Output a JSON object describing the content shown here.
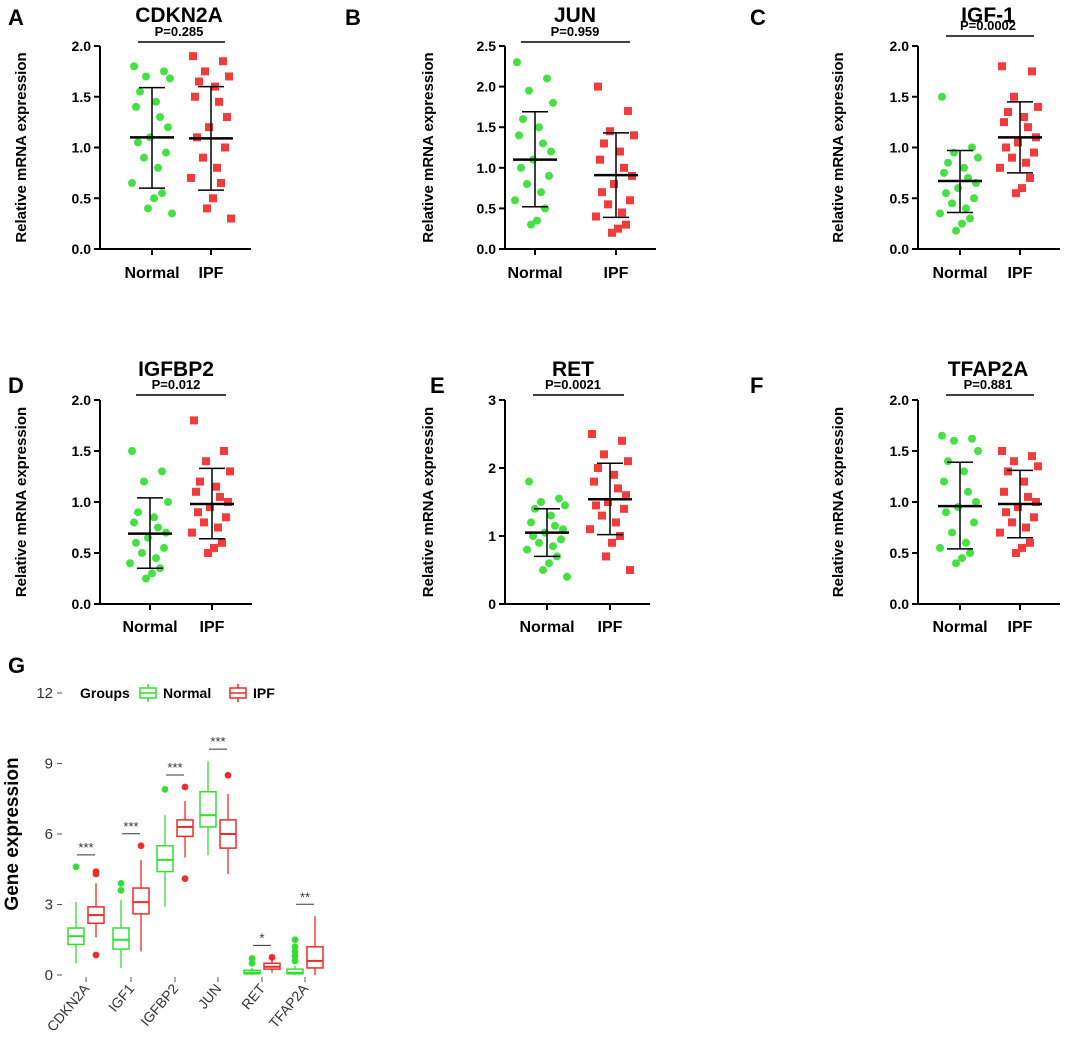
{
  "colors": {
    "normal": "#44e044",
    "ipf": "#f03c3c",
    "ink": "#000000",
    "g_normal": "#33dd33",
    "g_ipf": "#ee2a2a"
  },
  "chart_data": [
    {
      "id": "A",
      "type": "scatter",
      "title": "CDKN2A",
      "p_label": "P=0.285",
      "ylabel": "Relative mRNA expression",
      "ylim": [
        0,
        2.0
      ],
      "yticks": [
        "0.0",
        "0.5",
        "1.0",
        "1.5",
        "2.0"
      ],
      "categories": [
        "Normal",
        "IPF"
      ],
      "series": [
        {
          "name": "Normal",
          "mean": 1.1,
          "sd_low": 0.6,
          "sd_high": 1.59,
          "values": [
            1.8,
            1.75,
            1.7,
            1.68,
            1.55,
            1.45,
            1.4,
            1.3,
            1.2,
            1.1,
            1.05,
            0.95,
            0.9,
            0.8,
            0.65,
            0.55,
            0.5,
            0.4,
            0.35
          ]
        },
        {
          "name": "IPF",
          "mean": 1.09,
          "sd_low": 0.58,
          "sd_high": 1.6,
          "values": [
            1.9,
            1.85,
            1.75,
            1.7,
            1.65,
            1.6,
            1.5,
            1.45,
            1.3,
            1.2,
            1.1,
            1.0,
            0.9,
            0.8,
            0.7,
            0.65,
            0.5,
            0.4,
            0.3
          ]
        }
      ]
    },
    {
      "id": "B",
      "type": "scatter",
      "title": "JUN",
      "p_label": "P=0.959",
      "ylabel": "Relative mRNA expression",
      "ylim": [
        0,
        2.5
      ],
      "yticks": [
        "0.0",
        "0.5",
        "1.0",
        "1.5",
        "2.0",
        "2.5"
      ],
      "categories": [
        "Normal",
        "IPF"
      ],
      "series": [
        {
          "name": "Normal",
          "mean": 1.1,
          "sd_low": 0.52,
          "sd_high": 1.69,
          "values": [
            2.3,
            2.1,
            1.95,
            1.8,
            1.6,
            1.5,
            1.4,
            1.3,
            1.2,
            1.1,
            1.0,
            0.9,
            0.8,
            0.7,
            0.6,
            0.5,
            0.35,
            0.3
          ]
        },
        {
          "name": "IPF",
          "mean": 0.91,
          "sd_low": 0.39,
          "sd_high": 1.43,
          "values": [
            2.0,
            1.7,
            1.45,
            1.4,
            1.3,
            1.2,
            1.1,
            1.0,
            0.9,
            0.8,
            0.7,
            0.6,
            0.55,
            0.45,
            0.4,
            0.3,
            0.25,
            0.2
          ]
        }
      ]
    },
    {
      "id": "C",
      "type": "scatter",
      "title": "IGF-1",
      "p_label": "P=0.0002",
      "ylabel": "Relative mRNA expression",
      "ylim": [
        0,
        2.0
      ],
      "yticks": [
        "0.0",
        "0.5",
        "1.0",
        "1.5",
        "2.0"
      ],
      "categories": [
        "Normal",
        "IPF"
      ],
      "series": [
        {
          "name": "Normal",
          "mean": 0.67,
          "sd_low": 0.36,
          "sd_high": 0.97,
          "values": [
            1.5,
            1.0,
            0.95,
            0.9,
            0.85,
            0.8,
            0.75,
            0.7,
            0.65,
            0.6,
            0.55,
            0.5,
            0.45,
            0.4,
            0.35,
            0.3,
            0.25,
            0.18
          ]
        },
        {
          "name": "IPF",
          "mean": 1.1,
          "sd_low": 0.75,
          "sd_high": 1.45,
          "values": [
            1.8,
            1.75,
            1.5,
            1.4,
            1.35,
            1.3,
            1.25,
            1.2,
            1.1,
            1.05,
            1.0,
            0.95,
            0.9,
            0.85,
            0.8,
            0.7,
            0.6,
            0.55
          ]
        }
      ]
    },
    {
      "id": "D",
      "type": "scatter",
      "title": "IGFBP2",
      "p_label": "P=0.012",
      "ylabel": "Relative mRNA expression",
      "ylim": [
        0,
        2.0
      ],
      "yticks": [
        "0.0",
        "0.5",
        "1.0",
        "1.5",
        "2.0"
      ],
      "categories": [
        "Normal",
        "IPF"
      ],
      "series": [
        {
          "name": "Normal",
          "mean": 0.69,
          "sd_low": 0.35,
          "sd_high": 1.04,
          "values": [
            1.5,
            1.3,
            1.2,
            1.0,
            0.9,
            0.85,
            0.8,
            0.75,
            0.7,
            0.65,
            0.6,
            0.55,
            0.5,
            0.45,
            0.4,
            0.35,
            0.3,
            0.25
          ]
        },
        {
          "name": "IPF",
          "mean": 0.98,
          "sd_low": 0.64,
          "sd_high": 1.33,
          "values": [
            1.8,
            1.5,
            1.4,
            1.3,
            1.2,
            1.15,
            1.1,
            1.05,
            1.0,
            0.95,
            0.9,
            0.85,
            0.8,
            0.75,
            0.7,
            0.6,
            0.55,
            0.5
          ]
        }
      ]
    },
    {
      "id": "E",
      "type": "scatter",
      "title": "RET",
      "p_label": "P=0.0021",
      "ylabel": "Relative mRNA expression",
      "ylim": [
        0,
        3
      ],
      "yticks": [
        "0",
        "1",
        "2",
        "3"
      ],
      "categories": [
        "Normal",
        "IPF"
      ],
      "series": [
        {
          "name": "Normal",
          "mean": 1.05,
          "sd_low": 0.7,
          "sd_high": 1.4,
          "values": [
            1.8,
            1.55,
            1.5,
            1.45,
            1.4,
            1.3,
            1.2,
            1.15,
            1.1,
            1.05,
            1.0,
            0.95,
            0.9,
            0.85,
            0.8,
            0.7,
            0.6,
            0.5,
            0.4
          ]
        },
        {
          "name": "IPF",
          "mean": 1.54,
          "sd_low": 1.02,
          "sd_high": 2.07,
          "values": [
            2.5,
            2.4,
            2.2,
            2.1,
            2.0,
            1.9,
            1.8,
            1.7,
            1.6,
            1.5,
            1.45,
            1.4,
            1.3,
            1.2,
            1.1,
            1.0,
            0.9,
            0.7,
            0.5
          ]
        }
      ]
    },
    {
      "id": "F",
      "type": "scatter",
      "title": "TFAP2A",
      "p_label": "P=0.881",
      "ylabel": "Relative mRNA expression",
      "ylim": [
        0,
        2.0
      ],
      "yticks": [
        "0.0",
        "0.5",
        "1.0",
        "1.5",
        "2.0"
      ],
      "categories": [
        "Normal",
        "IPF"
      ],
      "series": [
        {
          "name": "Normal",
          "mean": 0.96,
          "sd_low": 0.54,
          "sd_high": 1.39,
          "values": [
            1.65,
            1.62,
            1.6,
            1.5,
            1.4,
            1.3,
            1.2,
            1.1,
            1.0,
            0.95,
            0.9,
            0.8,
            0.7,
            0.6,
            0.55,
            0.5,
            0.45,
            0.4
          ]
        },
        {
          "name": "IPF",
          "mean": 0.98,
          "sd_low": 0.65,
          "sd_high": 1.31,
          "values": [
            1.5,
            1.45,
            1.4,
            1.35,
            1.3,
            1.2,
            1.1,
            1.05,
            1.0,
            0.95,
            0.9,
            0.85,
            0.8,
            0.75,
            0.7,
            0.6,
            0.55,
            0.5
          ]
        }
      ]
    },
    {
      "id": "G",
      "type": "box",
      "ylabel": "Gene expression",
      "ylim": [
        0,
        12
      ],
      "yticks": [
        "0",
        "3",
        "6",
        "9",
        "12"
      ],
      "legend_title": "Groups",
      "legend_items": [
        "Normal",
        "IPF"
      ],
      "categories": [
        "CDKN2A",
        "IGF1",
        "IGFBP2",
        "JUN",
        "RET",
        "TFAP2A"
      ],
      "significance": [
        "***",
        "***",
        "***",
        "***",
        "*",
        "**"
      ],
      "series": [
        {
          "name": "Normal",
          "boxes": [
            {
              "q1": 1.3,
              "median": 1.65,
              "q3": 2.0,
              "wlo": 0.5,
              "whi": 3.1,
              "outliers": [
                4.6
              ]
            },
            {
              "q1": 1.1,
              "median": 1.5,
              "q3": 2.0,
              "wlo": 0.3,
              "whi": 3.2,
              "outliers": [
                3.6,
                3.9
              ]
            },
            {
              "q1": 4.4,
              "median": 4.9,
              "q3": 5.5,
              "wlo": 2.9,
              "whi": 6.8,
              "outliers": [
                7.9
              ]
            },
            {
              "q1": 6.3,
              "median": 6.8,
              "q3": 7.8,
              "wlo": 5.1,
              "whi": 9.1,
              "outliers": []
            },
            {
              "q1": 0.05,
              "median": 0.1,
              "q3": 0.2,
              "wlo": 0.0,
              "whi": 0.3,
              "outliers": [
                0.5,
                0.7
              ]
            },
            {
              "q1": 0.05,
              "median": 0.1,
              "q3": 0.25,
              "wlo": 0.0,
              "whi": 0.4,
              "outliers": [
                0.6,
                0.8,
                1.0,
                1.2,
                1.5
              ]
            }
          ]
        },
        {
          "name": "IPF",
          "boxes": [
            {
              "q1": 2.2,
              "median": 2.55,
              "q3": 2.9,
              "wlo": 1.6,
              "whi": 3.9,
              "outliers": [
                0.85,
                4.3,
                4.4
              ]
            },
            {
              "q1": 2.6,
              "median": 3.1,
              "q3": 3.7,
              "wlo": 1.0,
              "whi": 4.9,
              "outliers": [
                5.5
              ]
            },
            {
              "q1": 5.9,
              "median": 6.3,
              "q3": 6.6,
              "wlo": 5.0,
              "whi": 7.4,
              "outliers": [
                4.1,
                8.0
              ]
            },
            {
              "q1": 5.4,
              "median": 6.0,
              "q3": 6.6,
              "wlo": 4.3,
              "whi": 7.7,
              "outliers": [
                8.5
              ]
            },
            {
              "q1": 0.25,
              "median": 0.35,
              "q3": 0.5,
              "wlo": 0.1,
              "whi": 0.65,
              "outliers": [
                0.75
              ]
            },
            {
              "q1": 0.3,
              "median": 0.6,
              "q3": 1.2,
              "wlo": 0.0,
              "whi": 2.5,
              "outliers": []
            }
          ]
        }
      ]
    }
  ]
}
